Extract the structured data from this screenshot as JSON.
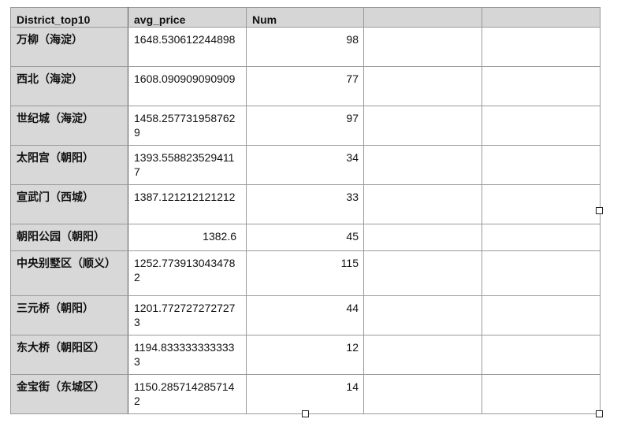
{
  "table": {
    "headers": [
      "District_top10",
      "avg_price",
      "Num",
      "",
      ""
    ],
    "rows": [
      {
        "district": "万柳（海淀）",
        "avg_price": "1648.530612244898",
        "num": "98"
      },
      {
        "district": "西北（海淀）",
        "avg_price": "1608.090909090909",
        "num": "77"
      },
      {
        "district": "世纪城（海淀）",
        "avg_price": "1458.2577319587629",
        "num": "97"
      },
      {
        "district": "太阳宫（朝阳）",
        "avg_price": "1393.5588235294117",
        "num": "34"
      },
      {
        "district": "宣武门（西城）",
        "avg_price": "1387.121212121212",
        "num": "33"
      },
      {
        "district": "朝阳公园（朝阳）",
        "avg_price": "1382.6",
        "num": "45"
      },
      {
        "district": "中央别墅区（顺义）",
        "avg_price": "1252.7739130434782",
        "num": "115"
      },
      {
        "district": "三元桥（朝阳）",
        "avg_price": "1201.7727272727273",
        "num": "44"
      },
      {
        "district": "东大桥（朝阳区）",
        "avg_price": "1194.8333333333333",
        "num": "12"
      },
      {
        "district": "金宝街（东城区）",
        "avg_price": "1150.2857142857142",
        "num": "14"
      }
    ]
  }
}
